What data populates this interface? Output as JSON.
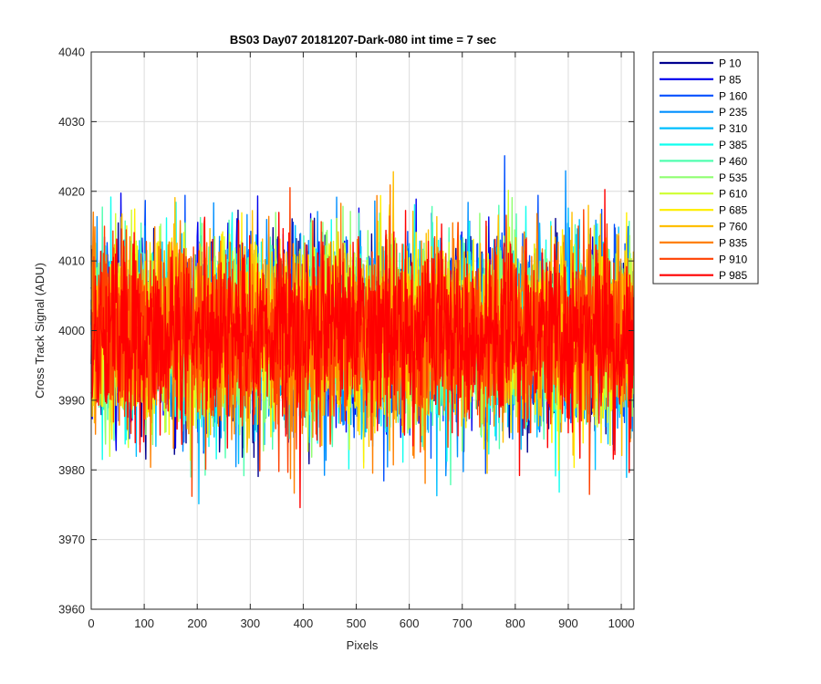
{
  "chart_data": {
    "type": "line",
    "title": "BS03 Day07 20181207-Dark-080 int time = 7 sec",
    "xlabel": "Pixels",
    "ylabel": "Cross Track Signal (ADU)",
    "xlim": [
      0,
      1024
    ],
    "ylim": [
      3960,
      4040
    ],
    "xticks": [
      0,
      100,
      200,
      300,
      400,
      500,
      600,
      700,
      800,
      900,
      1000
    ],
    "yticks": [
      3960,
      3970,
      3980,
      3990,
      4000,
      4010,
      4020,
      4030,
      4040
    ],
    "grid": true,
    "legend_placement": "outside-top-right",
    "series": [
      {
        "name": "P 10",
        "color": "#00008F",
        "mean": 3999.5,
        "spread": 6.5,
        "n_points": 1024
      },
      {
        "name": "P 85",
        "color": "#0000EF",
        "mean": 3999.5,
        "spread": 6.5,
        "n_points": 1024
      },
      {
        "name": "P 160",
        "color": "#0050FF",
        "mean": 3999.5,
        "spread": 6.5,
        "n_points": 1024
      },
      {
        "name": "P 235",
        "color": "#008FFF",
        "mean": 3999.5,
        "spread": 6.5,
        "n_points": 1024
      },
      {
        "name": "P 310",
        "color": "#00BFFF",
        "mean": 3999.5,
        "spread": 6.5,
        "n_points": 1024
      },
      {
        "name": "P 385",
        "color": "#10FFEF",
        "mean": 3999.5,
        "spread": 6.5,
        "n_points": 1024
      },
      {
        "name": "P 460",
        "color": "#50FFAF",
        "mean": 3999.5,
        "spread": 6.5,
        "n_points": 1024
      },
      {
        "name": "P 535",
        "color": "#8FFF70",
        "mean": 3999.5,
        "spread": 6.5,
        "n_points": 1024
      },
      {
        "name": "P 610",
        "color": "#CFFF30",
        "mean": 3999.5,
        "spread": 6.5,
        "n_points": 1024
      },
      {
        "name": "P 685",
        "color": "#FFEF00",
        "mean": 3999.5,
        "spread": 6.5,
        "n_points": 1024
      },
      {
        "name": "P 760",
        "color": "#FFBF00",
        "mean": 3999.5,
        "spread": 6.5,
        "n_points": 1024
      },
      {
        "name": "P 835",
        "color": "#FF8000",
        "mean": 3999.5,
        "spread": 6.5,
        "n_points": 1024
      },
      {
        "name": "P 910",
        "color": "#FF4000",
        "mean": 3999.5,
        "spread": 6.5,
        "n_points": 1024
      },
      {
        "name": "P 985",
        "color": "#FF0000",
        "mean": 3999.5,
        "spread": 6.5,
        "n_points": 1024
      }
    ],
    "annotations": []
  }
}
